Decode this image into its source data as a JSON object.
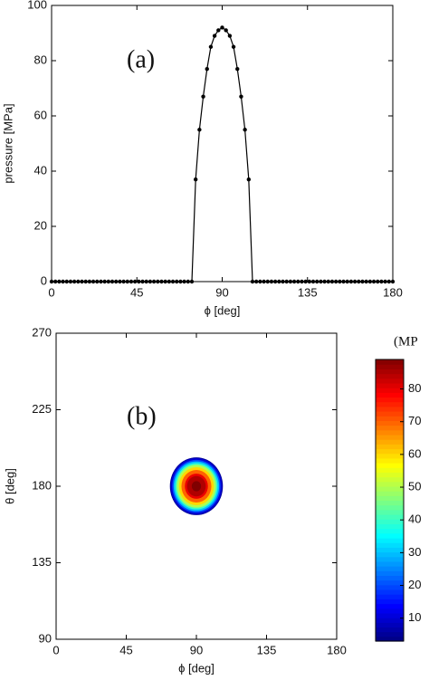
{
  "chart_data": [
    {
      "type": "line",
      "panel_label": "(a)",
      "x_label": "ϕ [deg]",
      "y_label": "pressure [MPa]",
      "xlim": [
        0,
        180
      ],
      "xticks": [
        0,
        45,
        90,
        135,
        180
      ],
      "ylim": [
        0,
        100
      ],
      "yticks": [
        0,
        20,
        40,
        60,
        80,
        100
      ],
      "color": "#000000",
      "x": [
        0,
        2,
        4,
        6,
        8,
        10,
        12,
        14,
        16,
        18,
        20,
        22,
        24,
        26,
        28,
        30,
        32,
        34,
        36,
        38,
        40,
        42,
        44,
        46,
        48,
        50,
        52,
        54,
        56,
        58,
        60,
        62,
        64,
        66,
        68,
        70,
        72,
        74,
        76,
        78,
        80,
        82,
        84,
        86,
        88,
        90,
        92,
        94,
        96,
        98,
        100,
        102,
        104,
        106,
        108,
        110,
        112,
        114,
        116,
        118,
        120,
        122,
        124,
        126,
        128,
        130,
        132,
        134,
        136,
        138,
        140,
        142,
        144,
        146,
        148,
        150,
        152,
        154,
        156,
        158,
        160,
        162,
        164,
        166,
        168,
        170,
        172,
        174,
        176,
        178,
        180
      ],
      "values": [
        0,
        0,
        0,
        0,
        0,
        0,
        0,
        0,
        0,
        0,
        0,
        0,
        0,
        0,
        0,
        0,
        0,
        0,
        0,
        0,
        0,
        0,
        0,
        0,
        0,
        0,
        0,
        0,
        0,
        0,
        0,
        0,
        0,
        0,
        0,
        0,
        0,
        0,
        37,
        55,
        67,
        77,
        85,
        89,
        91,
        92,
        91,
        89,
        85,
        77,
        67,
        55,
        37,
        0,
        0,
        0,
        0,
        0,
        0,
        0,
        0,
        0,
        0,
        0,
        0,
        0,
        0,
        0,
        0,
        0,
        0,
        0,
        0,
        0,
        0,
        0,
        0,
        0,
        0,
        0,
        0,
        0,
        0,
        0,
        0,
        0,
        0,
        0,
        0,
        0,
        0
      ]
    },
    {
      "type": "contour",
      "panel_label": "(b)",
      "x_label": "ϕ [deg]",
      "y_label": "θ [deg]",
      "colorbar_title": "(MP",
      "xlim": [
        0,
        180
      ],
      "xticks": [
        0,
        45,
        90,
        135,
        180
      ],
      "ylim": [
        90,
        270
      ],
      "yticks": [
        90,
        135,
        180,
        225,
        270
      ],
      "colormap": "jet",
      "clim": [
        3,
        89
      ],
      "cticks": [
        10,
        20,
        30,
        40,
        50,
        60,
        70,
        80
      ],
      "center_x": 90,
      "center_y": 180,
      "levels": [
        5,
        10,
        20,
        30,
        40,
        50,
        60,
        70,
        80,
        85,
        90
      ],
      "radii": [
        17,
        16.5,
        15.5,
        14.6,
        13.6,
        12.6,
        11.2,
        9.6,
        7.4,
        6,
        3
      ]
    }
  ]
}
